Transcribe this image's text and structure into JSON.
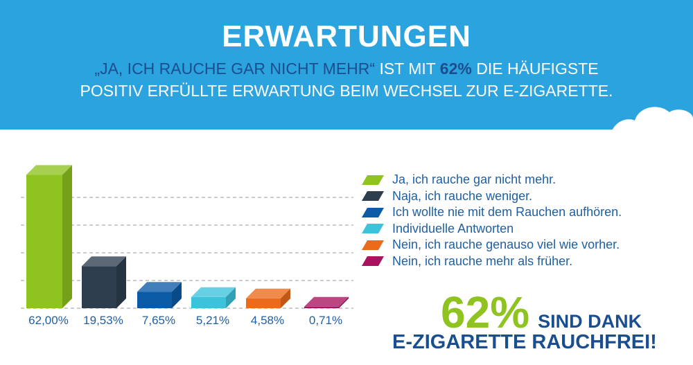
{
  "header": {
    "title": "ERWARTUNGEN",
    "subtitle_quote": "„JA, ICH RAUCHE GAR NICHT MEHR“",
    "subtitle_mid": " IST MIT ",
    "subtitle_pct": "62%",
    "subtitle_rest": " DIE HÄUFIGSTE",
    "subtitle_line2": "POSITIV ERFÜLLTE ERWARTUNG BEIM WECHSEL ZUR E-ZIGARETTE."
  },
  "chart_data": {
    "type": "bar",
    "categories": [
      "Ja, ich rauche gar nicht mehr.",
      "Naja, ich rauche weniger.",
      "Ich wollte nie mit dem Rauchen aufhören.",
      "Individuelle Antworten",
      "Nein, ich rauche genauso viel wie vorher.",
      "Nein, ich rauche mehr als früher."
    ],
    "values": [
      62.0,
      19.53,
      7.65,
      5.21,
      4.58,
      0.71
    ],
    "value_labels": [
      "62,00%",
      "19,53%",
      "7,65%",
      "5,21%",
      "4,58%",
      "0,71%"
    ],
    "colors": [
      "#8fc31f",
      "#2e3e4e",
      "#0b5aa6",
      "#3cc3dc",
      "#ec6a1b",
      "#a8125f"
    ],
    "ylim": [
      0,
      65
    ],
    "grid": true,
    "legend_position": "right"
  },
  "callout": {
    "number": "62%",
    "line1": "SIND DANK",
    "line2": "E-ZIGARETTE RAUCHFREI!"
  }
}
